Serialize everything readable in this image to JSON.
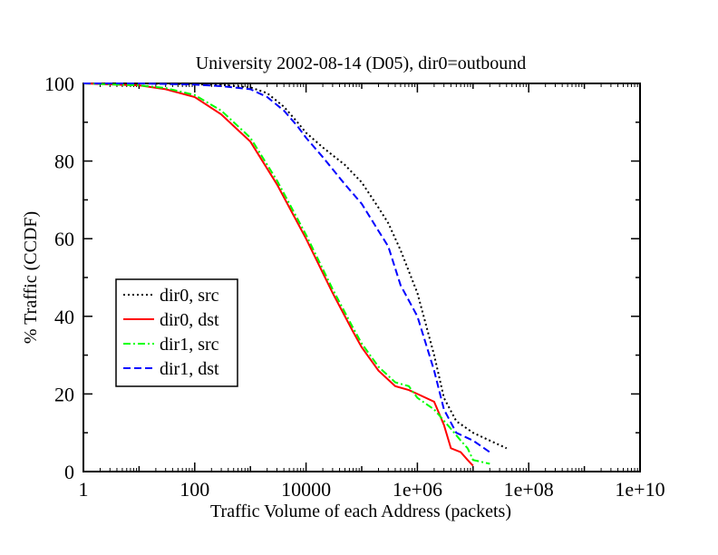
{
  "chart_data": {
    "type": "line",
    "title": "University 2002-08-14 (D05), dir0=outbound",
    "xlabel": "Traffic Volume of each Address (packets)",
    "ylabel": "% Traffic (CCDF)",
    "x_scale": "log",
    "xlim": [
      1,
      10000000000
    ],
    "ylim": [
      0,
      100
    ],
    "x_ticks": [
      "1",
      "100",
      "10000",
      "1e+06",
      "1e+08",
      "1e+10"
    ],
    "y_ticks": [
      "0",
      "20",
      "40",
      "60",
      "80",
      "100"
    ],
    "grid": false,
    "legend_position": "left-middle",
    "series": [
      {
        "name": "dir0, src",
        "color": "#000000",
        "style": "dotted",
        "points": [
          [
            1,
            100
          ],
          [
            10,
            100
          ],
          [
            100,
            99.8
          ],
          [
            300,
            99.6
          ],
          [
            1000,
            99
          ],
          [
            2000,
            97.5
          ],
          [
            4000,
            94
          ],
          [
            7000,
            90
          ],
          [
            10000,
            87.3
          ],
          [
            20000,
            83.5
          ],
          [
            50000,
            79
          ],
          [
            100000,
            74.5
          ],
          [
            200000,
            68
          ],
          [
            300000,
            64
          ],
          [
            500000,
            57
          ],
          [
            1000000,
            46
          ],
          [
            2000000,
            30
          ],
          [
            3000000,
            19
          ],
          [
            5000000,
            13
          ],
          [
            10000000,
            10
          ],
          [
            20000000,
            8
          ],
          [
            40000000,
            6
          ]
        ]
      },
      {
        "name": "dir0, dst",
        "color": "#ff0000",
        "style": "solid",
        "points": [
          [
            1,
            100
          ],
          [
            10,
            99.5
          ],
          [
            30,
            98.5
          ],
          [
            100,
            96.5
          ],
          [
            300,
            92
          ],
          [
            1000,
            85
          ],
          [
            3000,
            74
          ],
          [
            10000,
            60
          ],
          [
            30000,
            46
          ],
          [
            70000,
            36
          ],
          [
            100000,
            32
          ],
          [
            200000,
            26
          ],
          [
            400000,
            22
          ],
          [
            700000,
            21
          ],
          [
            1000000,
            20
          ],
          [
            2000000,
            18
          ],
          [
            3000000,
            12
          ],
          [
            4000000,
            6
          ],
          [
            6000000,
            5
          ],
          [
            8000000,
            3
          ],
          [
            10000000,
            1.5
          ]
        ]
      },
      {
        "name": "dir1, src",
        "color": "#00ff00",
        "style": "dash-dot",
        "points": [
          [
            1,
            100
          ],
          [
            10,
            99.5
          ],
          [
            30,
            98.8
          ],
          [
            100,
            97
          ],
          [
            300,
            93
          ],
          [
            1000,
            86
          ],
          [
            3000,
            75
          ],
          [
            10000,
            61
          ],
          [
            30000,
            47
          ],
          [
            70000,
            37
          ],
          [
            100000,
            33
          ],
          [
            200000,
            27
          ],
          [
            400000,
            23
          ],
          [
            700000,
            22
          ],
          [
            1000000,
            19
          ],
          [
            2000000,
            16
          ],
          [
            4000000,
            11
          ],
          [
            6000000,
            8
          ],
          [
            8000000,
            6
          ],
          [
            10000000,
            3
          ],
          [
            20000000,
            2
          ]
        ]
      },
      {
        "name": "dir1, dst",
        "color": "#0000ff",
        "style": "dashed",
        "points": [
          [
            1,
            100
          ],
          [
            10,
            100
          ],
          [
            100,
            99.7
          ],
          [
            300,
            99.3
          ],
          [
            1000,
            98.5
          ],
          [
            2000,
            96.5
          ],
          [
            4000,
            93
          ],
          [
            7000,
            89
          ],
          [
            10000,
            86
          ],
          [
            20000,
            81
          ],
          [
            50000,
            74
          ],
          [
            100000,
            69
          ],
          [
            200000,
            62
          ],
          [
            300000,
            58
          ],
          [
            500000,
            48
          ],
          [
            1000000,
            40
          ],
          [
            2000000,
            26
          ],
          [
            3000000,
            16
          ],
          [
            5000000,
            10
          ],
          [
            10000000,
            8
          ],
          [
            20000000,
            5
          ]
        ]
      }
    ]
  }
}
